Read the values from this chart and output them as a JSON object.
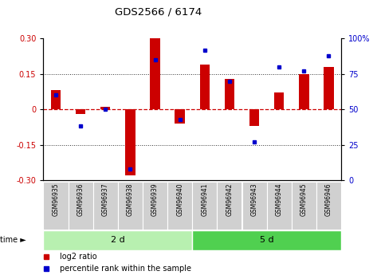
{
  "title": "GDS2566 / 6174",
  "samples": [
    "GSM96935",
    "GSM96936",
    "GSM96937",
    "GSM96938",
    "GSM96939",
    "GSM96940",
    "GSM96941",
    "GSM96942",
    "GSM96943",
    "GSM96944",
    "GSM96945",
    "GSM96946"
  ],
  "log2_ratio": [
    0.08,
    -0.02,
    0.01,
    -0.28,
    0.3,
    -0.06,
    0.19,
    0.13,
    -0.07,
    0.07,
    0.15,
    0.18
  ],
  "pct_rank": [
    60,
    38,
    50,
    8,
    85,
    43,
    92,
    70,
    27,
    80,
    77,
    88
  ],
  "groups": [
    {
      "label": "2 d",
      "start": 0,
      "end": 6,
      "color": "#b8f0b0"
    },
    {
      "label": "5 d",
      "start": 6,
      "end": 12,
      "color": "#50d050"
    }
  ],
  "ylim": [
    -0.3,
    0.3
  ],
  "yticks_left": [
    -0.3,
    -0.15,
    0.0,
    0.15,
    0.3
  ],
  "yticks_right": [
    0,
    25,
    50,
    75,
    100
  ],
  "bar_color": "#cc0000",
  "dot_color": "#0000cc",
  "zero_line_color": "#cc0000",
  "grid_color": "#303030",
  "background_color": "#ffffff",
  "time_label": "time ►",
  "legend_log2": "log2 ratio",
  "legend_pct": "percentile rank within the sample"
}
